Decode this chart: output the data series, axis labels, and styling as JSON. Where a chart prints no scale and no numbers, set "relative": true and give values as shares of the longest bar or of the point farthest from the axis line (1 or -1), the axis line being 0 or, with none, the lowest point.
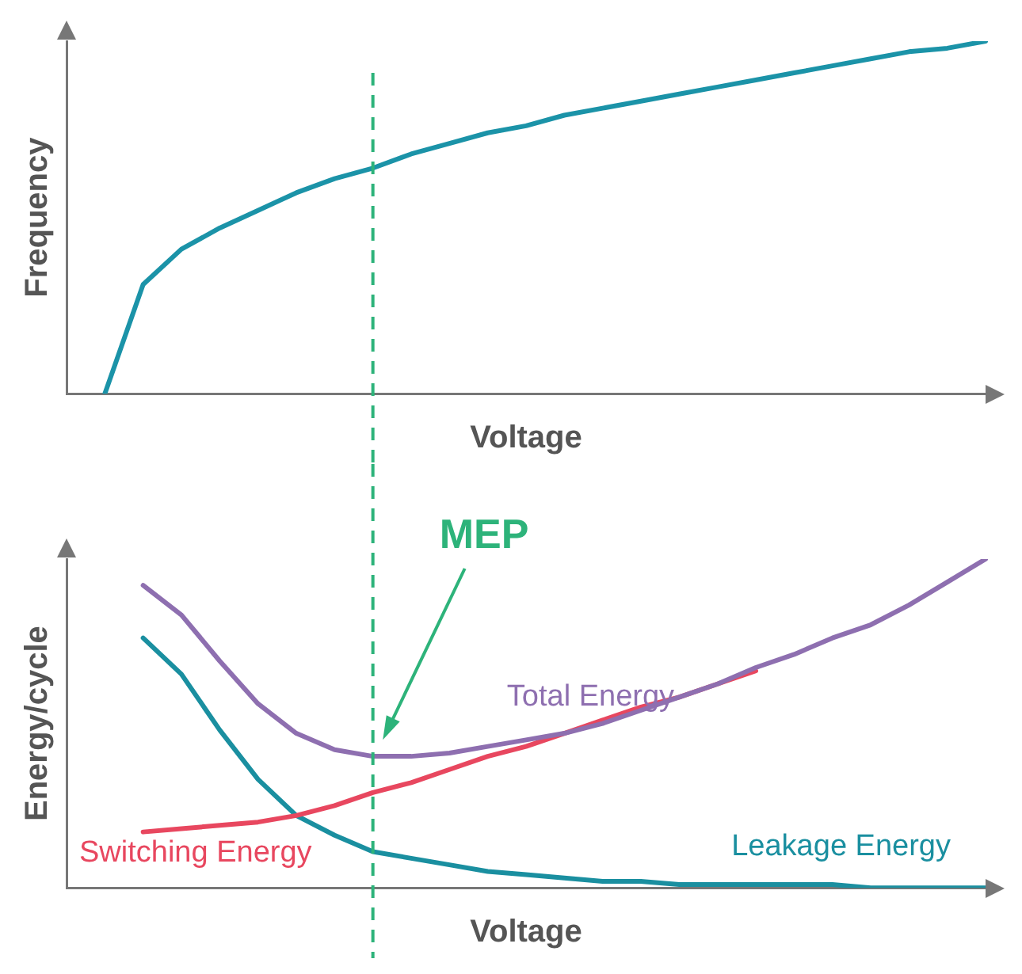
{
  "chart_data": [
    {
      "type": "line",
      "xlabel": "Voltage",
      "ylabel": "Frequency",
      "relative": true,
      "marker": "none",
      "categories": [
        null,
        null,
        null,
        null,
        null,
        null,
        null,
        null,
        null,
        null,
        null,
        null,
        null,
        null,
        null,
        null,
        null,
        null,
        null,
        null,
        null,
        null,
        null,
        null,
        null
      ],
      "series": [
        {
          "color": "#1b93a8",
          "values": [
            null,
            0,
            0.31,
            0.41,
            0.47,
            0.52,
            0.57,
            0.61,
            0.64,
            0.68,
            0.71,
            0.74,
            0.76,
            0.79,
            0.81,
            0.83,
            0.85,
            0.87,
            0.89,
            0.91,
            0.93,
            0.95,
            0.97,
            0.98,
            1
          ]
        }
      ]
    },
    {
      "type": "line",
      "xlabel": "Voltage",
      "ylabel": "Energy/cycle",
      "relative": true,
      "marker": "none",
      "categories": [
        null,
        null,
        null,
        null,
        null,
        null,
        null,
        null,
        null,
        null,
        null,
        null,
        null,
        null,
        null,
        null,
        null,
        null,
        null,
        null,
        null,
        null,
        null,
        null,
        null
      ],
      "series": [
        {
          "name": "Total Energy",
          "color": "#8e6fb0",
          "values": [
            null,
            null,
            0.92,
            0.83,
            0.69,
            0.56,
            0.47,
            0.42,
            0.4,
            0.4,
            0.41,
            0.43,
            0.45,
            0.47,
            0.5,
            0.54,
            0.58,
            0.62,
            0.67,
            0.71,
            0.76,
            0.8,
            0.86,
            0.93,
            1
          ]
        },
        {
          "name": "Switching Energy",
          "color": "#e8475f",
          "values": [
            null,
            null,
            0.17,
            0.18,
            0.19,
            0.2,
            0.22,
            0.25,
            0.29,
            0.32,
            0.36,
            0.4,
            0.43,
            0.47,
            0.51,
            0.55,
            0.58,
            0.62,
            0.66,
            null,
            null,
            null,
            null,
            null,
            null
          ]
        },
        {
          "name": "Leakage Energy",
          "color": "#1a8fa0",
          "values": [
            null,
            null,
            0.76,
            0.65,
            0.48,
            0.33,
            0.22,
            0.16,
            0.11,
            0.09,
            0.07,
            0.05,
            0.04,
            0.03,
            0.02,
            0.02,
            0.01,
            0.01,
            0.01,
            0.01,
            0.01,
            0,
            0,
            0,
            0
          ]
        }
      ],
      "annotations": [
        "MEP"
      ]
    }
  ]
}
